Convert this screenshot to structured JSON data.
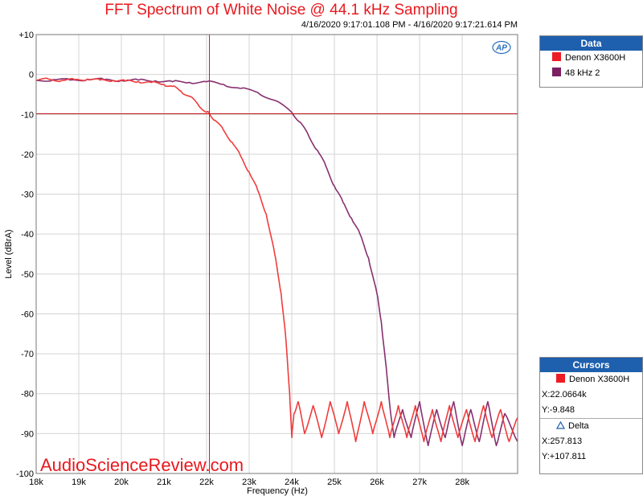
{
  "chart_data": {
    "type": "line",
    "title": "FFT Spectrum of White Noise @ 44.1 kHz Sampling",
    "subtitle": "4/16/2020 9:17:01.108 PM - 4/16/2020 9:17:21.614 PM",
    "xlabel": "Frequency (Hz)",
    "ylabel": "Level (dBrA)",
    "xlim": [
      18000,
      29300
    ],
    "ylim": [
      -100,
      10
    ],
    "grid": true,
    "legend_position": "top-right",
    "x_ticks": [
      {
        "value": 18000,
        "label": "18k"
      },
      {
        "value": 19000,
        "label": "19k"
      },
      {
        "value": 20000,
        "label": "20k"
      },
      {
        "value": 21000,
        "label": "21k"
      },
      {
        "value": 22000,
        "label": "22k"
      },
      {
        "value": 23000,
        "label": "23k"
      },
      {
        "value": 24000,
        "label": "24k"
      },
      {
        "value": 25000,
        "label": "25k"
      },
      {
        "value": 26000,
        "label": "26k"
      },
      {
        "value": 27000,
        "label": "27k"
      },
      {
        "value": 28000,
        "label": "28k"
      }
    ],
    "y_ticks": [
      {
        "value": 10,
        "label": "+10"
      },
      {
        "value": 0,
        "label": "0"
      },
      {
        "value": -10,
        "label": "-10"
      },
      {
        "value": -20,
        "label": "-20"
      },
      {
        "value": -30,
        "label": "-30"
      },
      {
        "value": -40,
        "label": "-40"
      },
      {
        "value": -50,
        "label": "-50"
      },
      {
        "value": -60,
        "label": "-60"
      },
      {
        "value": -70,
        "label": "-70"
      },
      {
        "value": -80,
        "label": "-80"
      },
      {
        "value": -90,
        "label": "-90"
      },
      {
        "value": -100,
        "label": "-100"
      }
    ],
    "cursor": {
      "x": 22066.4,
      "y": -9.848
    },
    "series": [
      {
        "name": "Denon X3600H",
        "color": "#f03c3c",
        "x": [
          18000,
          18300,
          18600,
          18900,
          19200,
          19500,
          19800,
          20100,
          20400,
          20700,
          21000,
          21200,
          21400,
          21600,
          21800,
          22000,
          22066,
          22200,
          22400,
          22600,
          22800,
          23000,
          23200,
          23400,
          23600,
          23750,
          23850,
          23950,
          24000,
          24050,
          24150,
          24300,
          24500,
          24700,
          24900,
          25100,
          25300,
          25500,
          25700,
          25900,
          26100,
          26300,
          26500,
          26700,
          26900,
          27100,
          27300,
          27500,
          27700,
          27900,
          28100,
          28300,
          28500,
          28700,
          28900,
          29100,
          29300
        ],
        "y": [
          -1.5,
          -1.2,
          -1.5,
          -1.3,
          -1.2,
          -1.4,
          -1.5,
          -1.6,
          -1.8,
          -2.0,
          -2.5,
          -3.0,
          -4.2,
          -5.5,
          -7.5,
          -9.5,
          -9.8,
          -11.5,
          -14,
          -17,
          -20.5,
          -24.5,
          -29,
          -35,
          -45,
          -55,
          -65,
          -80,
          -91,
          -85,
          -82,
          -90,
          -83,
          -91,
          -82,
          -90,
          -82,
          -92,
          -82,
          -90,
          -82,
          -91,
          -83,
          -91,
          -83,
          -92,
          -84,
          -92,
          -83,
          -91,
          -84,
          -92,
          -83,
          -91,
          -84,
          -92,
          -86
        ]
      },
      {
        "name": "48 kHz 2",
        "color": "#87306e",
        "x": [
          18000,
          18400,
          18800,
          19200,
          19600,
          20000,
          20400,
          20800,
          21200,
          21600,
          22000,
          22400,
          22800,
          23200,
          23600,
          24000,
          24200,
          24400,
          24600,
          24800,
          25000,
          25200,
          25400,
          25600,
          25800,
          26000,
          26100,
          26200,
          26300,
          26400,
          26600,
          26800,
          27000,
          27200,
          27400,
          27600,
          27800,
          28000,
          28200,
          28400,
          28600,
          28800,
          29000,
          29300
        ],
        "y": [
          -1.5,
          -1.3,
          -1.4,
          -1.2,
          -1.3,
          -1.5,
          -1.4,
          -1.6,
          -1.8,
          -2.0,
          -1.8,
          -2.5,
          -3.5,
          -4.5,
          -6.5,
          -9.5,
          -12,
          -15.5,
          -19,
          -23,
          -28,
          -32,
          -36,
          -40,
          -46,
          -55,
          -62,
          -72,
          -83,
          -91,
          -84,
          -91,
          -82,
          -93,
          -84,
          -91,
          -82,
          -93,
          -84,
          -92,
          -82,
          -93,
          -85,
          -92
        ]
      }
    ]
  },
  "panels": {
    "data_title": "Data",
    "cursors_title": "Cursors",
    "cursor_trace": "Denon X3600H",
    "cursor_x": "X:22.0664k",
    "cursor_y": "Y:-9.848",
    "delta_label": "Delta",
    "delta_x": "X:257.813",
    "delta_y": "Y:+107.811"
  },
  "watermark": "AudioScienceReview.com",
  "logo_text": "AP"
}
